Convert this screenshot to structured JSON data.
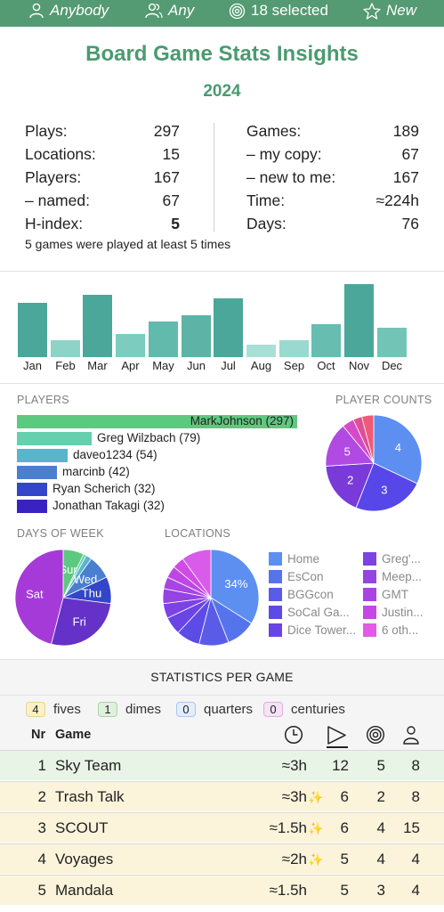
{
  "filters": {
    "player": "Anybody",
    "count": "Any",
    "selected": "18 selected",
    "status": "New"
  },
  "header": {
    "title": "Board Game Stats Insights",
    "year": "2024"
  },
  "summary": {
    "left": [
      {
        "label": "Plays:",
        "value": "297"
      },
      {
        "label": "Locations:",
        "value": "15"
      },
      {
        "label": "Players:",
        "value": "167"
      },
      {
        "label": "– named:",
        "value": "67"
      },
      {
        "label": "H-index:",
        "value": "5"
      }
    ],
    "right": [
      {
        "label": "Games:",
        "value": "189"
      },
      {
        "label": "– my copy:",
        "value": "67"
      },
      {
        "label": "– new to me:",
        "value": "167"
      },
      {
        "label": "Time:",
        "value": "≈224h"
      },
      {
        "label": "Days:",
        "value": "76"
      }
    ],
    "footnote": "5 games were played at least 5 times"
  },
  "chart_data": [
    {
      "type": "bar",
      "categories": [
        "Jan",
        "Feb",
        "Mar",
        "Apr",
        "May",
        "Jun",
        "Jul",
        "Aug",
        "Sep",
        "Oct",
        "Nov",
        "Dec"
      ],
      "values": [
        26,
        8,
        30,
        11,
        17,
        20,
        28,
        6,
        8,
        16,
        35,
        14
      ],
      "colors": [
        "#4ba799",
        "#8ed3c7",
        "#4ba799",
        "#7ccdbf",
        "#62baac",
        "#5cb3a6",
        "#4ba799",
        "#a9e0d6",
        "#9ad9ce",
        "#66bdb0",
        "#4ba799",
        "#72c4b6"
      ]
    },
    {
      "type": "bar",
      "title": "PLAYERS",
      "orientation": "horizontal",
      "categories": [
        "MarkJohnson (297)",
        "Greg Wilzbach (79)",
        "daveo1234 (54)",
        "marcinb (42)",
        "Ryan Scherich (32)",
        "Jonathan Takagi (32)"
      ],
      "values": [
        297,
        79,
        54,
        42,
        32,
        32
      ],
      "colors": [
        "#5dc97f",
        "#65cfae",
        "#5ab4cc",
        "#4a7fd0",
        "#3346c9",
        "#3a22c0"
      ]
    },
    {
      "type": "pie",
      "title": "PLAYER COUNTS",
      "slices": [
        {
          "label": "4",
          "value": 32,
          "color": "#5c8ff0"
        },
        {
          "label": "3",
          "value": 24,
          "color": "#5747e8"
        },
        {
          "label": "2",
          "value": 18,
          "color": "#7a3ad8"
        },
        {
          "label": "5",
          "value": 15,
          "color": "#b04ae2"
        },
        {
          "label": "",
          "value": 4,
          "color": "#d44ac8"
        },
        {
          "label": "",
          "value": 3,
          "color": "#e04e93"
        },
        {
          "label": "",
          "value": 4,
          "color": "#ef5a78"
        }
      ]
    },
    {
      "type": "pie",
      "title": "DAYS OF WEEK",
      "slices": [
        {
          "label": "Sun",
          "value": 7,
          "color": "#5dc97f"
        },
        {
          "label": "",
          "value": 1,
          "color": "#62d0b8"
        },
        {
          "label": "",
          "value": 2,
          "color": "#5ab4cc"
        },
        {
          "label": "Wed",
          "value": 8,
          "color": "#4a7fd0"
        },
        {
          "label": "Thu",
          "value": 9,
          "color": "#3346c9"
        },
        {
          "label": "Fri",
          "value": 27,
          "color": "#6432c8"
        },
        {
          "label": "Sat",
          "value": 46,
          "color": "#a63ad8"
        }
      ]
    },
    {
      "type": "pie",
      "title": "LOCATIONS",
      "slices": [
        {
          "label": "34%",
          "value": 34,
          "color": "#5c8ff0"
        },
        {
          "label": "",
          "value": 10,
          "color": "#5574ec"
        },
        {
          "label": "",
          "value": 10,
          "color": "#5a5ce8"
        },
        {
          "label": "",
          "value": 8,
          "color": "#5d4be8"
        },
        {
          "label": "",
          "value": 6,
          "color": "#6a44e5"
        },
        {
          "label": "",
          "value": 5,
          "color": "#7d42e4"
        },
        {
          "label": "",
          "value": 5,
          "color": "#9543e3"
        },
        {
          "label": "",
          "value": 4,
          "color": "#a944e4"
        },
        {
          "label": "",
          "value": 4,
          "color": "#be47e4"
        },
        {
          "label": "",
          "value": 4,
          "color": "#d04ae6"
        },
        {
          "label": "",
          "value": 10,
          "color": "#d85bea"
        }
      ],
      "legend": [
        {
          "label": "Home",
          "color": "#5c8ff0"
        },
        {
          "label": "EsCon",
          "color": "#5574ec"
        },
        {
          "label": "BGGcon",
          "color": "#5a5ce8"
        },
        {
          "label": "SoCal Ga...",
          "color": "#5d4be8"
        },
        {
          "label": "Dice Tower...",
          "color": "#6a44e5"
        },
        {
          "label": "Greg'...",
          "color": "#7d42e4"
        },
        {
          "label": "Meep...",
          "color": "#9543e3"
        },
        {
          "label": "GMT",
          "color": "#a944e4"
        },
        {
          "label": "Justin...",
          "color": "#c448e5"
        },
        {
          "label": "6 oth...",
          "color": "#e35ae8"
        }
      ]
    }
  ],
  "game_stats": {
    "title": "STATISTICS PER GAME",
    "chips": [
      {
        "count": "4",
        "label": "fives",
        "bg": "#fbf0c8",
        "border": "#e8d48a"
      },
      {
        "count": "1",
        "label": "dimes",
        "bg": "#dff1de",
        "border": "#a8d5a4"
      },
      {
        "count": "0",
        "label": "quarters",
        "bg": "#e2eefb",
        "border": "#a8c7ec"
      },
      {
        "count": "0",
        "label": "centuries",
        "bg": "#f5e2f5",
        "border": "#dcb0dc"
      }
    ],
    "columns": {
      "nr": "Nr",
      "game": "Game"
    },
    "rows": [
      {
        "nr": "1",
        "game": "Sky Team",
        "time": "≈3h",
        "new": "",
        "plays": "12",
        "days": "5",
        "players": "8",
        "bg": "#e7f4e6"
      },
      {
        "nr": "2",
        "game": "Trash Talk",
        "time": "≈3h",
        "new": "✨",
        "plays": "6",
        "days": "2",
        "players": "8",
        "bg": "#fbf4db"
      },
      {
        "nr": "3",
        "game": "SCOUT",
        "time": "≈1.5h",
        "new": "✨",
        "plays": "6",
        "days": "4",
        "players": "15",
        "bg": "#fbf4db"
      },
      {
        "nr": "4",
        "game": "Voyages",
        "time": "≈2h",
        "new": "✨",
        "plays": "5",
        "days": "4",
        "players": "4",
        "bg": "#fbf4db"
      },
      {
        "nr": "5",
        "game": "Mandala",
        "time": "≈1.5h",
        "new": "",
        "plays": "5",
        "days": "3",
        "players": "4",
        "bg": "#fbf4db"
      }
    ]
  }
}
